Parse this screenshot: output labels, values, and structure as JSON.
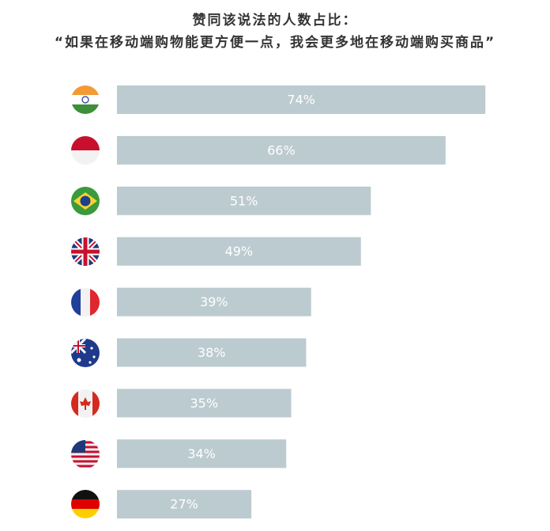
{
  "chart_data": {
    "type": "bar",
    "orientation": "horizontal",
    "title": "赞同该说法的人数占比：",
    "subtitle": "“如果在移动端购物能更方便一点，我会更多地在移动端购买商品”",
    "values": [
      74,
      66,
      51,
      49,
      39,
      38,
      35,
      34,
      27
    ],
    "value_labels": [
      "74%",
      "66%",
      "51%",
      "49%",
      "39%",
      "38%",
      "35%",
      "34%",
      "27%"
    ],
    "color": "#bccbd0"
  }
}
